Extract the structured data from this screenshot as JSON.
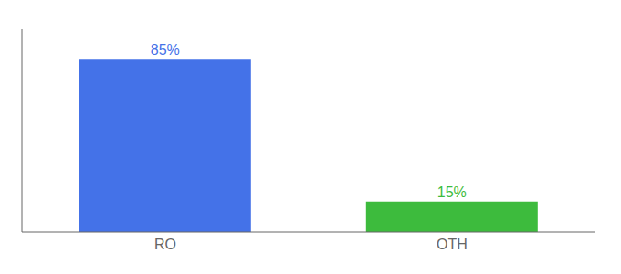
{
  "chart_data": {
    "type": "bar",
    "categories": [
      "RO",
      "OTH"
    ],
    "values": [
      85,
      15
    ],
    "value_labels": [
      "85%",
      "15%"
    ],
    "colors": [
      "#4472e8",
      "#3dbb3d"
    ],
    "ylim": [
      0,
      100
    ],
    "yticks": [],
    "tick_labels": "x"
  }
}
